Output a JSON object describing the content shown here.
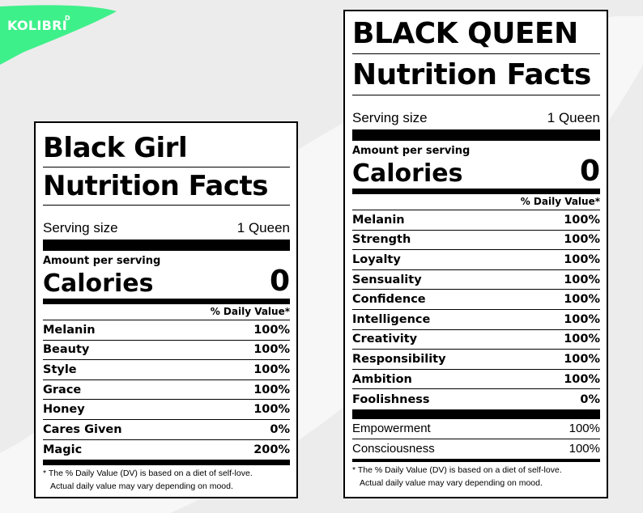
{
  "brand": {
    "name": "KOLIBRI",
    "superscript": "D",
    "accent": "#3ef08a"
  },
  "label_left": {
    "title_line1": "Black Girl",
    "title_line2": "Nutrition Facts",
    "serving_label": "Serving size",
    "serving_value": "1 Queen",
    "amount_per_serving": "Amount per serving",
    "calories_label": "Calories",
    "calories_value": "0",
    "dv_header": "% Daily Value*",
    "nutrients": [
      {
        "name": "Melanin",
        "value": "100%"
      },
      {
        "name": "Beauty",
        "value": "100%"
      },
      {
        "name": "Style",
        "value": "100%"
      },
      {
        "name": "Grace",
        "value": "100%"
      },
      {
        "name": "Honey",
        "value": "100%"
      },
      {
        "name": "Cares Given",
        "value": "0%"
      },
      {
        "name": "Magic",
        "value": "200%"
      }
    ],
    "footnote_line1": "* The % Daily Value (DV) is based on a diet of self-love.",
    "footnote_line2": "Actual daily value may vary depending on mood."
  },
  "label_right": {
    "title_line1": "BLACK QUEEN",
    "title_line2": "Nutrition Facts",
    "serving_label": "Serving size",
    "serving_value": "1 Queen",
    "amount_per_serving": "Amount per serving",
    "calories_label": "Calories",
    "calories_value": "0",
    "dv_header": "% Daily Value*",
    "nutrients": [
      {
        "name": "Melanin",
        "value": "100%"
      },
      {
        "name": "Strength",
        "value": "100%"
      },
      {
        "name": "Loyalty",
        "value": "100%"
      },
      {
        "name": "Sensuality",
        "value": "100%"
      },
      {
        "name": "Confidence",
        "value": "100%"
      },
      {
        "name": "Intelligence",
        "value": "100%"
      },
      {
        "name": "Creativity",
        "value": "100%"
      },
      {
        "name": "Responsibility",
        "value": "100%"
      },
      {
        "name": "Ambition",
        "value": "100%"
      },
      {
        "name": "Foolishness",
        "value": "0%"
      }
    ],
    "extras": [
      {
        "name": "Empowerment",
        "value": "100%"
      },
      {
        "name": "Consciousness",
        "value": "100%"
      }
    ],
    "footnote_line1": "* The % Daily Value (DV) is based on a diet of self-love.",
    "footnote_line2": "Actual daily value may vary depending on mood."
  }
}
